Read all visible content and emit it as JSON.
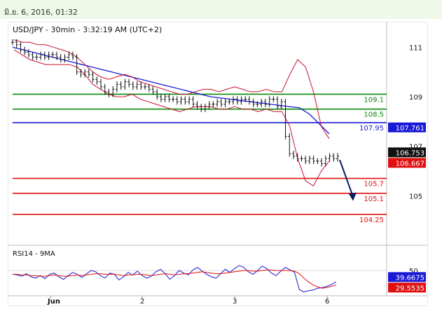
{
  "header": {
    "timestamp": "มิ.ย. 6, 2016, 01:32"
  },
  "chart_data": [
    {
      "type": "line",
      "title": "USD/JPY - 30min - 3:32:19 AM (UTC+2)",
      "x_ticks": [
        "Jun",
        "2",
        "3",
        "6"
      ],
      "y_ticks": [
        "111",
        "109",
        "107",
        "105"
      ],
      "ylim": [
        103.0,
        112.0
      ],
      "series": [
        {
          "values": [
            111.2,
            111.1,
            110.9,
            110.8,
            110.7,
            110.6,
            110.6,
            110.7,
            110.6,
            110.7,
            110.7,
            110.6,
            110.5,
            110.6,
            110.7,
            110.6,
            110.0,
            109.9,
            110.0,
            109.9,
            109.7,
            109.6,
            109.4,
            109.2,
            109.1,
            109.3,
            109.5,
            109.4,
            109.6,
            109.5,
            109.4,
            109.5,
            109.4,
            109.4,
            109.3,
            109.2,
            109.0,
            108.9,
            109.0,
            108.9,
            108.9,
            108.8,
            108.9,
            108.8,
            108.9,
            108.7,
            108.6,
            108.5,
            108.6,
            108.7,
            108.7,
            108.8,
            108.7,
            108.8,
            108.8,
            108.9,
            108.8,
            108.9,
            108.9,
            108.8,
            108.7,
            108.7,
            108.8,
            108.7,
            108.9,
            108.9,
            108.6,
            108.8,
            107.4,
            106.7,
            106.6,
            106.5,
            106.5,
            106.4,
            106.5,
            106.4,
            106.4,
            106.3,
            106.5,
            106.6,
            106.5,
            106.6
          ]
        },
        {
          "values": [
            111.0,
            110.9,
            110.8,
            110.7,
            110.6,
            110.5,
            110.4,
            110.3,
            110.2,
            110.1,
            110.0,
            109.9,
            109.8,
            109.7,
            109.6,
            109.5,
            109.4,
            109.3,
            109.2,
            109.1,
            109.0,
            108.95,
            108.9,
            108.85,
            108.8,
            108.75,
            108.7,
            108.65,
            108.6,
            108.55,
            108.3,
            107.9,
            107.5
          ]
        },
        {
          "values": [
            111.3,
            111.2,
            111.2,
            111.1,
            111.1,
            111.0,
            110.9,
            110.8,
            110.6,
            110.3,
            110.0,
            109.8,
            109.7,
            109.8,
            109.9,
            109.8,
            109.6,
            109.5,
            109.4,
            109.3,
            109.2,
            109.1,
            109.1,
            109.2,
            109.3,
            109.3,
            109.2,
            109.3,
            109.4,
            109.3,
            109.2,
            109.2,
            109.3,
            109.2,
            109.2,
            109.9,
            110.5,
            110.2,
            109.2,
            107.8,
            107.3
          ]
        },
        {
          "values": [
            110.9,
            110.7,
            110.5,
            110.4,
            110.3,
            110.3,
            110.3,
            110.3,
            110.2,
            109.9,
            109.5,
            109.3,
            109.1,
            109.0,
            109.0,
            109.1,
            108.9,
            108.8,
            108.7,
            108.6,
            108.5,
            108.4,
            108.5,
            108.6,
            108.6,
            108.6,
            108.5,
            108.5,
            108.6,
            108.5,
            108.5,
            108.4,
            108.5,
            108.4,
            108.4,
            107.8,
            106.5,
            105.6,
            105.4,
            106.0,
            106.4
          ]
        }
      ],
      "levels": [
        {
          "value": 109.1,
          "label": "109.1",
          "color": "#0a8a0a"
        },
        {
          "value": 108.5,
          "label": "108.5",
          "color": "#0a8a0a"
        },
        {
          "value": 107.95,
          "label": "107.95",
          "color": "#1a1ad6"
        },
        {
          "value": 105.7,
          "label": "105.7",
          "color": "#e01010"
        },
        {
          "value": 105.1,
          "label": "105.1",
          "color": "#e01010"
        },
        {
          "value": 104.25,
          "label": "104.25",
          "color": "#e01010"
        }
      ],
      "price_tags": [
        {
          "label": "107.761",
          "value": 107.761,
          "bg": "#1a1ad6"
        },
        {
          "label": "106.753",
          "value": 106.753,
          "bg": "#111111"
        },
        {
          "label": "106.667",
          "value": 106.667,
          "bg": "#e01010"
        }
      ],
      "arrow": {
        "from": [
          106.45,
          104.85
        ]
      },
      "colors": {
        "bar": "#111111",
        "ma": "#1a1ad6",
        "band": "#c8102e"
      }
    },
    {
      "type": "line",
      "title": "RSI14 - 9MA",
      "y_ticks": [
        "50"
      ],
      "ylim": [
        10,
        90
      ],
      "series": [
        {
          "values": [
            44,
            43,
            41,
            45,
            40,
            38,
            42,
            37,
            44,
            46,
            40,
            36,
            42,
            47,
            44,
            39,
            45,
            50,
            48,
            42,
            38,
            46,
            44,
            35,
            40,
            47,
            43,
            49,
            42,
            38,
            41,
            48,
            52,
            45,
            36,
            42,
            50,
            46,
            43,
            51,
            55,
            49,
            44,
            40,
            38,
            45,
            52,
            47,
            53,
            58,
            55,
            48,
            44,
            50,
            57,
            53,
            46,
            42,
            49,
            55,
            51,
            47,
            20,
            16,
            18,
            19,
            22,
            23,
            25,
            28,
            32
          ]
        },
        {
          "values": [
            44,
            44,
            43,
            43,
            42,
            42,
            41,
            41,
            42,
            43,
            42,
            41,
            41,
            42,
            43,
            42,
            43,
            44,
            45,
            45,
            44,
            44,
            44,
            43,
            42,
            43,
            43,
            44,
            44,
            43,
            42,
            43,
            44,
            45,
            44,
            43,
            44,
            45,
            45,
            46,
            47,
            48,
            47,
            46,
            45,
            45,
            46,
            47,
            48,
            49,
            50,
            50,
            49,
            49,
            50,
            51,
            51,
            50,
            50,
            50,
            50,
            49,
            45,
            38,
            32,
            27,
            24,
            22,
            23,
            25,
            27
          ]
        }
      ],
      "price_tags": [
        {
          "label": "39.6675",
          "value": 39.6675,
          "bg": "#1a1ad6"
        },
        {
          "label": "29.5535",
          "value": 29.5535,
          "bg": "#e01010"
        }
      ],
      "colors": {
        "rsi": "#1a1ad6",
        "ma": "#e01010"
      }
    }
  ]
}
